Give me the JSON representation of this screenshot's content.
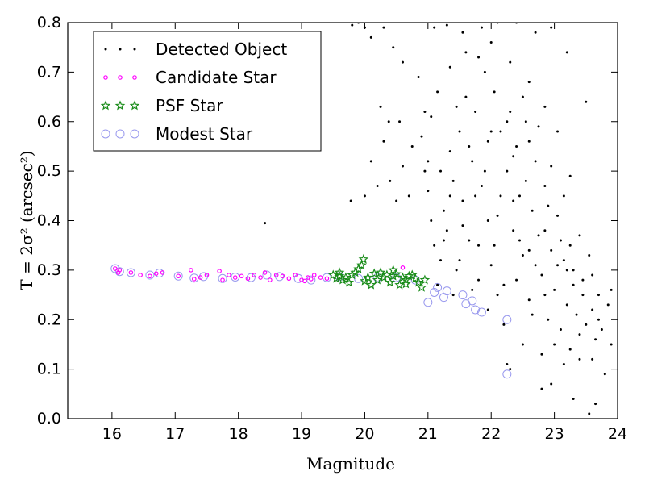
{
  "chart_data": {
    "type": "scatter",
    "xlabel": "Magnitude",
    "ylabel": "T = 2σ² (arcsec²)",
    "xlim": [
      15.3,
      24
    ],
    "ylim": [
      0,
      0.8
    ],
    "xticks": [
      "16",
      "17",
      "18",
      "19",
      "20",
      "21",
      "22",
      "23",
      "24"
    ],
    "yticks": [
      "0.0",
      "0.1",
      "0.2",
      "0.3",
      "0.4",
      "0.5",
      "0.6",
      "0.7",
      "0.8"
    ],
    "legend_position": "top-left",
    "grid": false,
    "series": [
      {
        "name": "Detected Object",
        "marker": "dot",
        "color": "#000000",
        "points": [
          [
            18.42,
            0.395
          ],
          [
            19.78,
            0.44
          ],
          [
            20.0,
            0.45
          ],
          [
            20.1,
            0.52
          ],
          [
            20.2,
            0.47
          ],
          [
            20.3,
            0.56
          ],
          [
            20.4,
            0.48
          ],
          [
            20.5,
            0.44
          ],
          [
            20.55,
            0.6
          ],
          [
            20.6,
            0.51
          ],
          [
            20.7,
            0.45
          ],
          [
            20.75,
            0.55
          ],
          [
            20.9,
            0.57
          ],
          [
            20.95,
            0.5
          ],
          [
            20.1,
            0.77
          ],
          [
            20.0,
            0.79
          ],
          [
            19.8,
            0.795
          ],
          [
            19.9,
            0.8
          ],
          [
            20.3,
            0.79
          ],
          [
            20.45,
            0.75
          ],
          [
            20.6,
            0.72
          ],
          [
            20.85,
            0.69
          ],
          [
            20.95,
            0.62
          ],
          [
            20.25,
            0.63
          ],
          [
            20.38,
            0.6
          ],
          [
            21.0,
            0.46
          ],
          [
            21.05,
            0.4
          ],
          [
            21.1,
            0.35
          ],
          [
            21.2,
            0.32
          ],
          [
            21.25,
            0.42
          ],
          [
            21.3,
            0.38
          ],
          [
            21.35,
            0.54
          ],
          [
            21.4,
            0.48
          ],
          [
            21.45,
            0.3
          ],
          [
            21.5,
            0.58
          ],
          [
            21.55,
            0.44
          ],
          [
            21.6,
            0.65
          ],
          [
            21.65,
            0.36
          ],
          [
            21.7,
            0.52
          ],
          [
            21.75,
            0.62
          ],
          [
            21.8,
            0.28
          ],
          [
            21.85,
            0.47
          ],
          [
            21.9,
            0.7
          ],
          [
            21.95,
            0.56
          ],
          [
            22.0,
            0.31
          ],
          [
            22.05,
            0.66
          ],
          [
            22.1,
            0.41
          ],
          [
            22.15,
            0.58
          ],
          [
            22.2,
            0.27
          ],
          [
            22.25,
            0.5
          ],
          [
            22.3,
            0.62
          ],
          [
            22.35,
            0.38
          ],
          [
            22.4,
            0.55
          ],
          [
            22.45,
            0.45
          ],
          [
            22.5,
            0.33
          ],
          [
            22.55,
            0.6
          ],
          [
            22.6,
            0.24
          ],
          [
            22.65,
            0.42
          ],
          [
            22.7,
            0.52
          ],
          [
            22.75,
            0.37
          ],
          [
            22.8,
            0.29
          ],
          [
            22.85,
            0.47
          ],
          [
            22.9,
            0.2
          ],
          [
            22.95,
            0.34
          ],
          [
            23.0,
            0.26
          ],
          [
            23.05,
            0.41
          ],
          [
            23.1,
            0.18
          ],
          [
            23.15,
            0.32
          ],
          [
            23.2,
            0.23
          ],
          [
            23.25,
            0.14
          ],
          [
            23.3,
            0.3
          ],
          [
            23.35,
            0.21
          ],
          [
            23.4,
            0.12
          ],
          [
            23.45,
            0.25
          ],
          [
            23.5,
            0.19
          ],
          [
            23.55,
            0.33
          ],
          [
            23.6,
            0.22
          ],
          [
            23.65,
            0.16
          ],
          [
            23.7,
            0.2
          ],
          [
            23.8,
            0.09
          ],
          [
            23.85,
            0.23
          ],
          [
            23.9,
            0.15
          ],
          [
            23.55,
            0.01
          ],
          [
            23.65,
            0.03
          ],
          [
            23.3,
            0.04
          ],
          [
            22.95,
            0.07
          ],
          [
            22.8,
            0.06
          ],
          [
            22.25,
            0.11
          ],
          [
            22.3,
            0.1
          ],
          [
            23.15,
            0.11
          ],
          [
            23.5,
            0.64
          ],
          [
            23.2,
            0.74
          ],
          [
            22.95,
            0.79
          ],
          [
            22.7,
            0.78
          ],
          [
            22.4,
            0.8
          ],
          [
            22.1,
            0.8
          ],
          [
            21.85,
            0.79
          ],
          [
            21.55,
            0.78
          ],
          [
            21.3,
            0.795
          ],
          [
            21.1,
            0.79
          ],
          [
            21.05,
            0.61
          ],
          [
            21.15,
            0.66
          ],
          [
            21.35,
            0.71
          ],
          [
            21.6,
            0.74
          ],
          [
            21.8,
            0.73
          ],
          [
            22.0,
            0.76
          ],
          [
            22.3,
            0.72
          ],
          [
            22.6,
            0.68
          ],
          [
            22.85,
            0.63
          ],
          [
            23.05,
            0.58
          ],
          [
            23.25,
            0.49
          ],
          [
            23.4,
            0.37
          ],
          [
            23.6,
            0.29
          ],
          [
            23.75,
            0.18
          ],
          [
            22.2,
            0.19
          ],
          [
            22.5,
            0.15
          ],
          [
            22.8,
            0.13
          ],
          [
            21.95,
            0.22
          ],
          [
            21.7,
            0.26
          ],
          [
            21.5,
            0.32
          ],
          [
            21.25,
            0.36
          ],
          [
            21.15,
            0.27
          ],
          [
            21.4,
            0.25
          ],
          [
            21.95,
            0.4
          ],
          [
            22.45,
            0.36
          ],
          [
            22.7,
            0.31
          ],
          [
            22.55,
            0.48
          ],
          [
            22.35,
            0.53
          ],
          [
            22.15,
            0.45
          ],
          [
            21.9,
            0.5
          ],
          [
            21.65,
            0.55
          ],
          [
            21.45,
            0.63
          ],
          [
            21.2,
            0.5
          ],
          [
            21.0,
            0.52
          ],
          [
            22.05,
            0.35
          ],
          [
            22.6,
            0.56
          ],
          [
            22.9,
            0.43
          ],
          [
            23.1,
            0.36
          ],
          [
            23.3,
            0.27
          ],
          [
            22.4,
            0.28
          ],
          [
            22.65,
            0.21
          ],
          [
            22.85,
            0.25
          ],
          [
            23.0,
            0.15
          ],
          [
            23.2,
            0.3
          ],
          [
            22.25,
            0.6
          ],
          [
            22.5,
            0.65
          ],
          [
            22.75,
            0.59
          ],
          [
            22.95,
            0.51
          ],
          [
            23.15,
            0.45
          ],
          [
            22.0,
            0.58
          ],
          [
            21.75,
            0.45
          ],
          [
            21.55,
            0.39
          ],
          [
            21.35,
            0.45
          ],
          [
            21.8,
            0.35
          ],
          [
            22.1,
            0.25
          ],
          [
            22.35,
            0.44
          ],
          [
            22.6,
            0.34
          ],
          [
            22.85,
            0.38
          ],
          [
            23.05,
            0.31
          ],
          [
            23.25,
            0.35
          ],
          [
            23.45,
            0.28
          ],
          [
            23.7,
            0.25
          ],
          [
            23.9,
            0.26
          ],
          [
            23.6,
            0.12
          ],
          [
            23.4,
            0.17
          ]
        ]
      },
      {
        "name": "Candidate Star",
        "marker": "circle",
        "color": "#ff00ff",
        "points": [
          [
            16.05,
            0.303
          ],
          [
            16.1,
            0.295
          ],
          [
            16.12,
            0.3
          ],
          [
            16.3,
            0.295
          ],
          [
            16.45,
            0.29
          ],
          [
            16.6,
            0.288
          ],
          [
            16.7,
            0.293
          ],
          [
            16.8,
            0.295
          ],
          [
            17.05,
            0.288
          ],
          [
            17.25,
            0.3
          ],
          [
            17.3,
            0.282
          ],
          [
            17.4,
            0.285
          ],
          [
            17.5,
            0.29
          ],
          [
            17.7,
            0.298
          ],
          [
            17.75,
            0.28
          ],
          [
            17.85,
            0.29
          ],
          [
            17.95,
            0.285
          ],
          [
            18.05,
            0.288
          ],
          [
            18.15,
            0.283
          ],
          [
            18.25,
            0.29
          ],
          [
            18.35,
            0.285
          ],
          [
            18.42,
            0.295
          ],
          [
            18.5,
            0.28
          ],
          [
            18.6,
            0.29
          ],
          [
            18.7,
            0.288
          ],
          [
            18.8,
            0.283
          ],
          [
            18.9,
            0.29
          ],
          [
            19.0,
            0.28
          ],
          [
            19.1,
            0.285
          ],
          [
            19.2,
            0.29
          ],
          [
            19.3,
            0.285
          ],
          [
            19.4,
            0.283
          ],
          [
            20.6,
            0.305
          ],
          [
            19.05,
            0.278
          ],
          [
            19.15,
            0.282
          ]
        ]
      },
      {
        "name": "PSF Star",
        "marker": "star",
        "color": "#1a8c1a",
        "points": [
          [
            19.5,
            0.29
          ],
          [
            19.55,
            0.283
          ],
          [
            19.6,
            0.288
          ],
          [
            19.65,
            0.28
          ],
          [
            19.7,
            0.285
          ],
          [
            19.75,
            0.275
          ],
          [
            19.8,
            0.29
          ],
          [
            19.85,
            0.295
          ],
          [
            19.9,
            0.302
          ],
          [
            19.95,
            0.31
          ],
          [
            20.0,
            0.278
          ],
          [
            20.05,
            0.285
          ],
          [
            20.1,
            0.27
          ],
          [
            20.15,
            0.293
          ],
          [
            20.2,
            0.28
          ],
          [
            20.25,
            0.295
          ],
          [
            20.3,
            0.285
          ],
          [
            20.35,
            0.29
          ],
          [
            20.4,
            0.275
          ],
          [
            20.45,
            0.288
          ],
          [
            20.5,
            0.292
          ],
          [
            20.55,
            0.27
          ],
          [
            20.6,
            0.285
          ],
          [
            20.65,
            0.28
          ],
          [
            20.7,
            0.288
          ],
          [
            20.75,
            0.29
          ],
          [
            20.8,
            0.283
          ],
          [
            20.85,
            0.275
          ],
          [
            20.9,
            0.265
          ],
          [
            20.95,
            0.28
          ],
          [
            19.98,
            0.322
          ],
          [
            19.6,
            0.295
          ],
          [
            20.45,
            0.3
          ],
          [
            20.65,
            0.272
          ]
        ]
      },
      {
        "name": "Modest Star",
        "marker": "circle",
        "color": "#9999ee",
        "points": [
          [
            16.05,
            0.303
          ],
          [
            16.12,
            0.297
          ],
          [
            16.3,
            0.295
          ],
          [
            16.6,
            0.29
          ],
          [
            16.75,
            0.294
          ],
          [
            17.05,
            0.288
          ],
          [
            17.3,
            0.284
          ],
          [
            17.45,
            0.287
          ],
          [
            17.75,
            0.283
          ],
          [
            17.95,
            0.286
          ],
          [
            18.2,
            0.285
          ],
          [
            18.45,
            0.29
          ],
          [
            18.65,
            0.287
          ],
          [
            18.95,
            0.283
          ],
          [
            19.15,
            0.28
          ],
          [
            19.4,
            0.285
          ],
          [
            19.6,
            0.287
          ],
          [
            19.9,
            0.283
          ],
          [
            20.2,
            0.285
          ],
          [
            20.5,
            0.285
          ],
          [
            20.8,
            0.28
          ],
          [
            21.0,
            0.235
          ],
          [
            21.1,
            0.255
          ],
          [
            21.15,
            0.265
          ],
          [
            21.25,
            0.245
          ],
          [
            21.3,
            0.258
          ],
          [
            21.55,
            0.25
          ],
          [
            21.6,
            0.232
          ],
          [
            21.7,
            0.238
          ],
          [
            21.75,
            0.22
          ],
          [
            21.85,
            0.215
          ],
          [
            22.25,
            0.2
          ],
          [
            22.25,
            0.09
          ]
        ]
      }
    ]
  }
}
